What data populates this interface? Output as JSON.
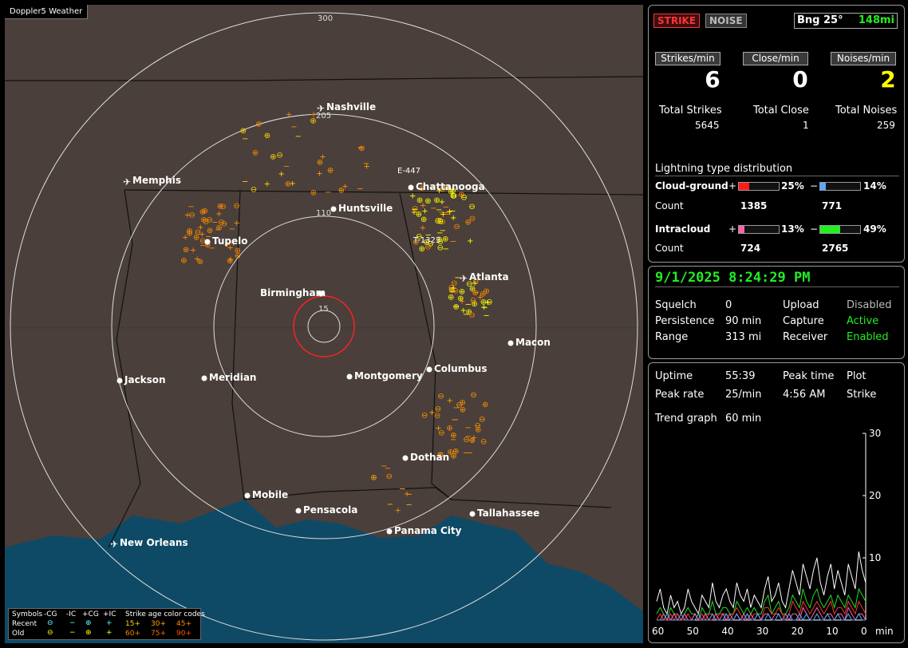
{
  "app_title": "Doppler5 Weather",
  "map": {
    "range_labels": [
      "300",
      "205",
      "110",
      "15"
    ],
    "cities": [
      {
        "name": "Nashville",
        "icon": "airport-icon"
      },
      {
        "name": "Memphis",
        "icon": "airport-icon"
      },
      {
        "name": "Chattanooga",
        "icon": "dot-icon"
      },
      {
        "name": "Huntsville",
        "icon": "dot-icon"
      },
      {
        "name": "Tupelo",
        "icon": "dot-icon"
      },
      {
        "name": "Atlanta",
        "icon": "airport-icon"
      },
      {
        "name": "Birmingham",
        "icon": "dot-icon"
      },
      {
        "name": "Macon",
        "icon": "dot-icon"
      },
      {
        "name": "Jackson",
        "icon": "dot-icon"
      },
      {
        "name": "Meridian",
        "icon": "dot-icon"
      },
      {
        "name": "Montgomery",
        "icon": "dot-icon"
      },
      {
        "name": "Columbus",
        "icon": "dot-icon"
      },
      {
        "name": "Dothan",
        "icon": "dot-icon"
      },
      {
        "name": "Mobile",
        "icon": "dot-icon"
      },
      {
        "name": "Pensacola",
        "icon": "dot-icon"
      },
      {
        "name": "Tallahassee",
        "icon": "dot-icon"
      },
      {
        "name": "Panama City",
        "icon": "dot-icon"
      },
      {
        "name": "New Orleans",
        "icon": "airport-icon"
      }
    ],
    "storm_tags": [
      "E-447",
      "T-1323"
    ],
    "legend": {
      "symbols_label": "Symbols",
      "cols": [
        "-CG",
        "-IC",
        "+CG",
        "+IC"
      ],
      "recent_label": "Recent",
      "old_label": "Old",
      "age_title": "Strike age color codes",
      "ages_recent": [
        "15+",
        "30+",
        "45+"
      ],
      "ages_old": [
        "60+",
        "75+",
        "90+"
      ]
    }
  },
  "top_panel": {
    "strike_button": "STRIKE",
    "noise_button": "NOISE",
    "bearing_label": "Bng 25°",
    "distance_label": "148mi",
    "rate_headers": [
      "Strikes/min",
      "Close/min",
      "Noises/min"
    ],
    "rates": [
      "6",
      "0",
      "2"
    ],
    "total_headers": [
      "Total Strikes",
      "Total Close",
      "Total Noises"
    ],
    "totals": [
      "5645",
      "1",
      "259"
    ],
    "dist_title": "Lightning type distribution",
    "cg_label": "Cloud-ground",
    "ic_label": "Intracloud",
    "count_label": "Count",
    "plus": "+",
    "minus": "−",
    "cg_pos_pct": "25%",
    "cg_neg_pct": "14%",
    "ic_pos_pct": "13%",
    "ic_neg_pct": "49%",
    "cg_pos_frac": 0.25,
    "cg_neg_frac": 0.14,
    "ic_pos_frac": 0.13,
    "ic_neg_frac": 0.49,
    "cg_pos_count": "1385",
    "cg_neg_count": "771",
    "ic_pos_count": "724",
    "ic_neg_count": "2765",
    "colors": {
      "cg_pos": "#ff1a1a",
      "cg_neg": "#5aa9ff",
      "ic_pos": "#ff66aa",
      "ic_neg": "#22ee22"
    }
  },
  "status_panel": {
    "datetime": "9/1/2025 8:24:29 PM",
    "squelch_label": "Squelch",
    "squelch_value": "0",
    "persistence_label": "Persistence",
    "persistence_value": "90 min",
    "range_label": "Range",
    "range_value": "313 mi",
    "upload_label": "Upload",
    "upload_value": "Disabled",
    "capture_label": "Capture",
    "capture_value": "Active",
    "receiver_label": "Receiver",
    "receiver_value": "Enabled"
  },
  "trend_panel": {
    "uptime_label": "Uptime",
    "uptime_value": "55:39",
    "peak_time_label": "Peak time",
    "peak_time_value": "4:56 AM",
    "plot_label": "Plot",
    "plot_value": "Strike",
    "peak_rate_label": "Peak rate",
    "peak_rate_value": "25/min",
    "trend_graph_label": "Trend graph",
    "trend_graph_value": "60 min"
  },
  "chart_data": {
    "type": "line",
    "x_ticks": [
      "60",
      "50",
      "40",
      "30",
      "20",
      "10",
      "0"
    ],
    "x_unit": "min",
    "y_ticks": [
      "30",
      "20",
      "10"
    ],
    "ylim": [
      0,
      30
    ],
    "xlim": [
      60,
      0
    ],
    "series": [
      {
        "color": "#ffffff",
        "values": [
          3,
          5,
          2,
          1,
          4,
          2,
          3,
          1,
          2,
          5,
          3,
          2,
          1,
          4,
          3,
          2,
          6,
          3,
          2,
          4,
          5,
          3,
          2,
          6,
          4,
          3,
          5,
          2,
          4,
          3,
          2,
          5,
          7,
          3,
          4,
          6,
          3,
          2,
          5,
          8,
          6,
          4,
          9,
          7,
          5,
          8,
          10,
          6,
          4,
          7,
          9,
          5,
          8,
          6,
          4,
          9,
          7,
          5,
          11,
          8,
          6
        ]
      },
      {
        "color": "#22dd22",
        "values": [
          1,
          2,
          1,
          0,
          2,
          1,
          1,
          0,
          1,
          2,
          1,
          1,
          0,
          2,
          1,
          1,
          3,
          1,
          1,
          2,
          2,
          1,
          1,
          3,
          2,
          1,
          2,
          1,
          2,
          1,
          1,
          3,
          4,
          1,
          2,
          3,
          1,
          1,
          2,
          4,
          3,
          2,
          5,
          3,
          2,
          4,
          5,
          3,
          2,
          3,
          4,
          2,
          4,
          3,
          2,
          4,
          3,
          2,
          5,
          4,
          3
        ]
      },
      {
        "color": "#ff3333",
        "values": [
          0,
          1,
          0,
          0,
          1,
          0,
          1,
          0,
          0,
          1,
          0,
          1,
          0,
          1,
          0,
          1,
          1,
          0,
          1,
          1,
          1,
          0,
          1,
          2,
          1,
          0,
          1,
          0,
          1,
          1,
          0,
          2,
          2,
          1,
          1,
          2,
          1,
          0,
          1,
          3,
          2,
          1,
          3,
          2,
          1,
          2,
          3,
          2,
          1,
          2,
          3,
          1,
          2,
          2,
          1,
          3,
          2,
          1,
          3,
          2,
          1
        ]
      },
      {
        "color": "#ff66aa",
        "values": [
          0,
          0,
          1,
          0,
          0,
          1,
          0,
          0,
          1,
          0,
          0,
          1,
          0,
          0,
          1,
          0,
          0,
          1,
          0,
          1,
          0,
          1,
          0,
          1,
          0,
          1,
          0,
          1,
          0,
          1,
          0,
          1,
          1,
          0,
          1,
          1,
          0,
          1,
          0,
          1,
          1,
          0,
          2,
          1,
          0,
          1,
          2,
          1,
          0,
          1,
          1,
          0,
          1,
          1,
          0,
          2,
          1,
          0,
          1,
          1,
          0
        ]
      },
      {
        "color": "#5aa9ff",
        "values": [
          0,
          0,
          0,
          1,
          0,
          0,
          0,
          1,
          0,
          0,
          0,
          0,
          1,
          0,
          0,
          0,
          1,
          0,
          0,
          0,
          1,
          0,
          0,
          1,
          0,
          0,
          1,
          0,
          0,
          1,
          0,
          0,
          1,
          0,
          0,
          1,
          0,
          0,
          1,
          0,
          0,
          1,
          0,
          1,
          0,
          0,
          1,
          0,
          0,
          1,
          0,
          0,
          1,
          0,
          0,
          1,
          0,
          0,
          1,
          0,
          0
        ]
      }
    ]
  }
}
